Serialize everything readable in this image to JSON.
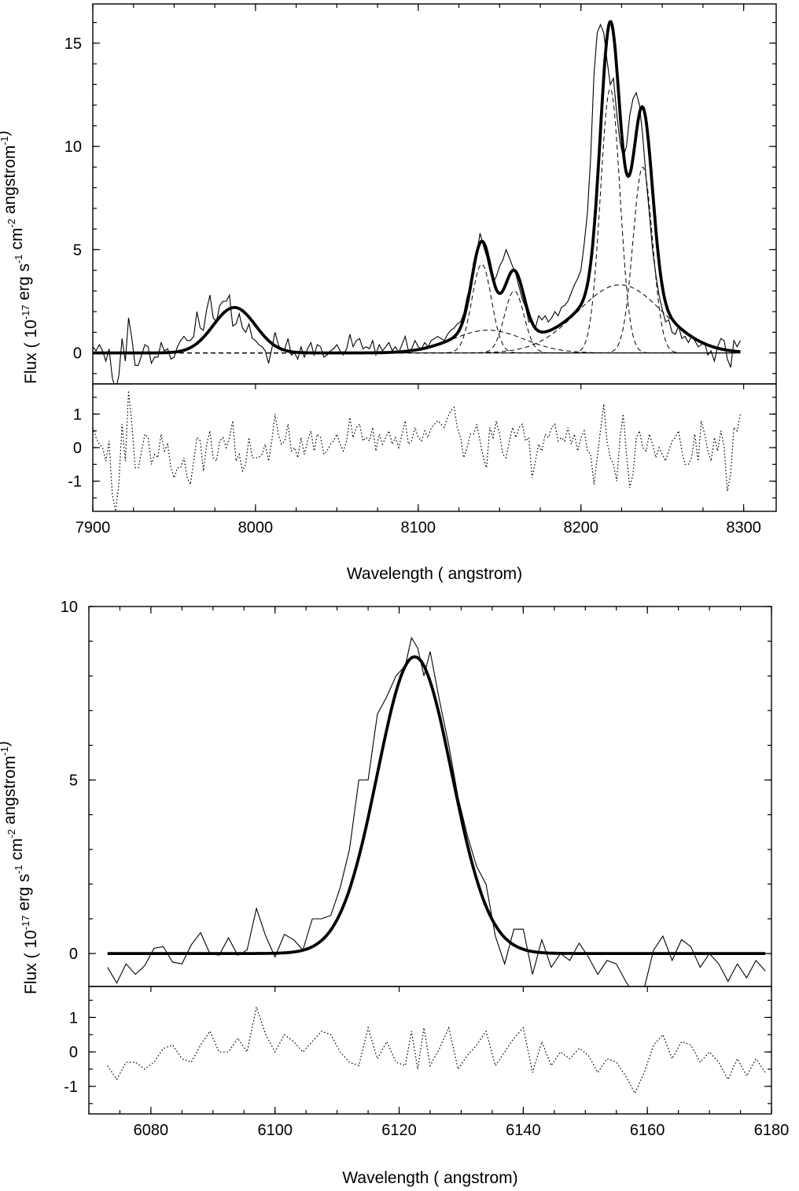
{
  "chart_data": [
    {
      "type": "line",
      "panel": "top",
      "xlabel": "Wavelength  ( angstrom)",
      "ylabel": "Flux  ( 10-17 erg s-1 cm-2 angstrom-1)",
      "ylabel_parts": {
        "open": "Flux  ( 10",
        "exp1": "-17",
        "mid1": " erg s",
        "exp2": "-1",
        "mid2": " cm",
        "exp3": "-2",
        "mid3": " angstrom",
        "exp4": "-1",
        "close": ")"
      },
      "xlim": [
        7900,
        8320
      ],
      "main_ylim": [
        -1.5,
        16.9
      ],
      "resid_ylim": [
        -1.9,
        1.9
      ],
      "xticks": [
        "7900",
        "8000",
        "8100",
        "8200",
        "8300"
      ],
      "main_yticks": [
        "0",
        "5",
        "10",
        "15"
      ],
      "resid_yticks": [
        "-1",
        "0",
        "1"
      ],
      "gaussian_components": [
        {
          "center": 7987,
          "sigma": 13,
          "amplitude": 2.2
        },
        {
          "center": 8139,
          "sigma": 6,
          "amplitude": 4.3
        },
        {
          "center": 8159,
          "sigma": 6,
          "amplitude": 3.0
        },
        {
          "center": 8143,
          "sigma": 22,
          "amplitude": 1.1
        },
        {
          "center": 8218,
          "sigma": 6,
          "amplitude": 12.8
        },
        {
          "center": 8238,
          "sigma": 6,
          "amplitude": 9.0
        },
        {
          "center": 8224,
          "sigma": 26,
          "amplitude": 3.3
        }
      ],
      "total_fit_peaks": [
        {
          "x": 7987,
          "y": 2.1
        },
        {
          "x": 8139,
          "y": 5.5
        },
        {
          "x": 8159,
          "y": 4.3
        },
        {
          "x": 8219,
          "y": 16.3
        },
        {
          "x": 8238,
          "y": 12.1
        }
      ],
      "observed": {
        "x_start": 7900,
        "step": 2,
        "y": [
          0.3,
          0.1,
          0.4,
          0.1,
          -0.4,
          0.2,
          -1.2,
          -1.8,
          -1.1,
          0.7,
          -0.4,
          1.7,
          0.7,
          -0.6,
          -0.6,
          -0.1,
          0.4,
          0.3,
          -0.5,
          -0.2,
          -0.2,
          0.5,
          0.1,
          0.2,
          -0.3,
          -0.2,
          0.3,
          0.6,
          0.8,
          0.6,
          0.6,
          0.8,
          2.0,
          1.2,
          1.1,
          2.1,
          2.8,
          1.7,
          1.5,
          2.3,
          2.5,
          2.5,
          2.8,
          1.3,
          1.4,
          1.9,
          1.2,
          1.0,
          1.4,
          0.7,
          0.6,
          0.4,
          0.3,
          0.1,
          -0.5,
          0.2,
          1.0,
          0.4,
          0.1,
          0.2,
          0.7,
          -0.1,
          0.0,
          -0.3,
          0.3,
          -0.2,
          0.2,
          0.5,
          -0.1,
          0.4,
          0.3,
          -0.2,
          -0.1,
          0.1,
          0.2,
          0.4,
          0.1,
          -0.1,
          0.2,
          0.9,
          0.3,
          0.6,
          0.7,
          0.2,
          0.3,
          0.2,
          0.6,
          -0.1,
          0.4,
          0.1,
          0.3,
          0.5,
          0.1,
          0.3,
          0.0,
          0.4,
          0.8,
          0.1,
          0.2,
          0.6,
          0.3,
          0.2,
          0.5,
          0.3,
          0.6,
          0.7,
          0.8,
          0.7,
          0.6,
          0.9,
          1.1,
          1.2,
          1.4,
          1.5,
          1.9,
          2.7,
          3.2,
          4.4,
          4.8,
          5.8,
          5.2,
          4.7,
          4.0,
          3.4,
          3.7,
          4.2,
          4.5,
          5.0,
          4.6,
          4.2,
          3.8,
          3.2,
          2.6,
          2.2,
          1.5,
          1.6,
          1.2,
          1.8,
          1.6,
          1.8,
          1.5,
          1.7,
          2.0,
          1.8,
          2.2,
          2.3,
          2.5,
          2.9,
          3.3,
          3.6,
          4.0,
          5.3,
          6.8,
          9.5,
          13.5,
          15.5,
          15.9,
          15.5,
          14.2,
          13.0,
          13.3,
          11.6,
          10.2,
          9.5,
          10.0,
          11.5,
          12.3,
          12.6,
          12.0,
          10.5,
          8.5,
          6.8,
          5.0,
          3.8,
          2.8,
          2.1,
          1.5,
          1.6,
          1.0,
          0.9,
          1.3,
          0.7,
          0.8,
          0.5,
          0.8,
          0.6,
          0.3,
          0.4,
          0.5,
          -0.1,
          0.1,
          -0.4,
          0.3,
          0.7,
          0.6,
          -0.3,
          -0.7,
          0.6,
          0.3,
          0.6
        ]
      },
      "residual": {
        "x_start": 7900,
        "step": 2,
        "y": [
          0.6,
          0.3,
          0.1,
          0.0,
          -0.4,
          0.2,
          -1.4,
          -1.9,
          -1.1,
          0.7,
          -0.4,
          1.7,
          0.7,
          -0.6,
          -0.6,
          -0.1,
          0.4,
          0.3,
          -0.5,
          -0.2,
          -0.3,
          0.4,
          -0.1,
          0.1,
          -0.6,
          -0.9,
          -0.6,
          -0.6,
          -0.3,
          -0.9,
          -1.1,
          -0.4,
          0.3,
          0.2,
          -0.7,
          0.1,
          0.5,
          -0.3,
          -0.4,
          0.2,
          0.3,
          0.0,
          0.3,
          0.8,
          -0.4,
          -0.2,
          -0.7,
          -0.5,
          0.3,
          -0.3,
          -0.3,
          -0.3,
          -0.2,
          0.1,
          -0.4,
          0.2,
          1.0,
          0.4,
          0.1,
          0.2,
          0.7,
          -0.1,
          0.0,
          -0.3,
          0.3,
          -0.2,
          0.2,
          0.5,
          -0.1,
          0.4,
          0.3,
          -0.2,
          -0.1,
          0.1,
          0.2,
          0.4,
          0.1,
          -0.1,
          0.2,
          0.9,
          0.3,
          0.6,
          0.7,
          0.2,
          0.3,
          0.2,
          0.6,
          -0.1,
          0.4,
          0.1,
          0.3,
          0.5,
          0.1,
          0.3,
          0.0,
          0.4,
          0.8,
          0.1,
          0.2,
          0.6,
          0.3,
          0.2,
          0.5,
          0.3,
          0.6,
          0.7,
          0.8,
          0.7,
          0.6,
          0.9,
          1.1,
          1.2,
          0.6,
          0.3,
          -0.3,
          0.0,
          0.4,
          0.4,
          0.7,
          0.2,
          -0.3,
          -0.6,
          0.6,
          0.3,
          0.8,
          0.4,
          -0.2,
          -0.3,
          0.2,
          0.6,
          0.3,
          0.6,
          0.7,
          0.2,
          0.3,
          -0.9,
          -0.4,
          0.1,
          -0.1,
          0.4,
          0.3,
          0.6,
          0.7,
          0.2,
          0.3,
          0.2,
          0.6,
          0.1,
          0.4,
          -0.1,
          0.3,
          0.5,
          -0.1,
          -0.2,
          -1.1,
          -0.3,
          0.5,
          1.3,
          0.2,
          -0.3,
          -0.5,
          -1.0,
          0.3,
          1.0,
          -0.2,
          -1.2,
          -0.8,
          0.3,
          0.5,
          0.0,
          -0.1,
          0.4,
          0.1,
          -0.3,
          0.0,
          -0.2,
          -0.4,
          -0.1,
          0.2,
          0.3,
          0.5,
          -0.1,
          -0.5,
          -0.5,
          -0.3,
          0.4,
          -0.4,
          0.8,
          0.4,
          -0.1,
          -0.4,
          0.3,
          -0.1,
          0.5,
          0.0,
          -1.3,
          -0.8,
          0.6,
          0.5,
          1.0
        ]
      }
    },
    {
      "type": "line",
      "panel": "bottom",
      "xlabel": "Wavelength  ( angstrom)",
      "ylabel": "Flux  ( 10-17 erg s-1 cm-2 angstrom-1)",
      "ylabel_parts": {
        "open": "Flux  ( 10",
        "exp1": "-17",
        "mid1": " erg s",
        "exp2": "-1",
        "mid2": " cm",
        "exp3": "-2",
        "mid3": " angstrom",
        "exp4": "-1",
        "close": ")"
      },
      "xlim": [
        6070,
        6180
      ],
      "main_ylim": [
        -0.95,
        10
      ],
      "resid_ylim": [
        -1.8,
        1.9
      ],
      "xticks": [
        "6080",
        "6100",
        "6120",
        "6140",
        "6160",
        "6180"
      ],
      "main_yticks": [
        "0",
        "5",
        "10"
      ],
      "resid_yticks": [
        "-1",
        "0",
        "1"
      ],
      "gaussian_components": [
        {
          "center": 6122.5,
          "sigma": 6.0,
          "amplitude": 8.55
        }
      ],
      "total_fit_peaks": [
        {
          "x": 6122.5,
          "y": 8.55
        }
      ],
      "observed": {
        "x": [
          6073,
          6074.5,
          6076,
          6077.5,
          6079,
          6080.5,
          6082,
          6083.5,
          6085,
          6086.5,
          6088,
          6089.5,
          6091,
          6092.5,
          6094,
          6095.5,
          6097,
          6098.5,
          6100,
          6101.5,
          6103,
          6104.5,
          6106,
          6107.5,
          6109,
          6110.5,
          6112,
          6113.5,
          6115,
          6116.5,
          6118,
          6119.5,
          6121,
          6122,
          6123,
          6124,
          6125,
          6126.5,
          6128,
          6129.5,
          6131,
          6132.5,
          6134,
          6135.5,
          6137,
          6138.5,
          6140,
          6141.5,
          6143,
          6144.5,
          6146,
          6147.5,
          6149,
          6150.5,
          6152,
          6153.5,
          6155,
          6156.5,
          6158,
          6159.5,
          6161,
          6162.5,
          6164,
          6165.5,
          6167,
          6168.5,
          6170,
          6171.5,
          6173,
          6174.5,
          6176,
          6177.5,
          6179
        ],
        "y": [
          -0.4,
          -0.85,
          -0.3,
          -0.6,
          -0.35,
          0.15,
          0.2,
          -0.25,
          -0.3,
          0.25,
          0.6,
          0.0,
          -0.05,
          0.45,
          -0.05,
          0.1,
          1.3,
          0.5,
          -0.1,
          0.55,
          0.4,
          0.1,
          1.0,
          1.0,
          1.1,
          1.9,
          3.0,
          5.0,
          5.0,
          6.9,
          7.4,
          8.0,
          8.3,
          9.1,
          8.8,
          8.0,
          8.7,
          7.3,
          6.0,
          4.5,
          3.4,
          2.5,
          2.0,
          0.5,
          -0.3,
          0.7,
          0.7,
          -0.6,
          0.4,
          -0.4,
          0.0,
          -0.2,
          0.3,
          -0.1,
          -0.6,
          -0.2,
          -0.3,
          -0.8,
          -1.2,
          -1.0,
          0.1,
          0.5,
          -0.2,
          0.4,
          0.2,
          -0.4,
          0.0,
          -0.3,
          -0.8,
          -0.3,
          -0.7,
          -0.2,
          -0.5
        ]
      },
      "residual": {
        "x": [
          6073,
          6074.5,
          6076,
          6077.5,
          6079,
          6080.5,
          6082,
          6083.5,
          6085,
          6086.5,
          6088,
          6089.5,
          6091,
          6092.5,
          6094,
          6095.5,
          6097,
          6098.5,
          6100,
          6101.5,
          6103,
          6104.5,
          6106,
          6107.5,
          6109,
          6110.5,
          6112,
          6113.5,
          6115,
          6116.5,
          6118,
          6119.5,
          6121,
          6122,
          6123,
          6124,
          6125,
          6126.5,
          6128,
          6129.5,
          6131,
          6132.5,
          6134,
          6135.5,
          6137,
          6138.5,
          6140,
          6141.5,
          6143,
          6144.5,
          6146,
          6147.5,
          6149,
          6150.5,
          6152,
          6153.5,
          6155,
          6156.5,
          6158,
          6159.5,
          6161,
          6162.5,
          6164,
          6165.5,
          6167,
          6168.5,
          6170,
          6171.5,
          6173,
          6174.5,
          6176,
          6177.5,
          6179
        ],
        "y": [
          -0.4,
          -0.8,
          -0.3,
          -0.3,
          -0.5,
          -0.3,
          0.1,
          0.2,
          -0.2,
          -0.3,
          0.2,
          0.6,
          0.0,
          0.0,
          0.4,
          0.0,
          1.3,
          0.5,
          0.0,
          0.5,
          0.3,
          0.0,
          0.3,
          0.6,
          0.5,
          0.0,
          -0.3,
          -0.4,
          0.7,
          -0.2,
          0.3,
          -0.3,
          -0.4,
          0.6,
          -0.5,
          0.7,
          -0.4,
          0.1,
          0.7,
          -0.5,
          -0.1,
          0.2,
          0.6,
          -0.4,
          0.0,
          0.4,
          0.7,
          -0.6,
          0.3,
          -0.4,
          0.0,
          -0.2,
          0.1,
          -0.1,
          -0.6,
          -0.2,
          -0.3,
          -0.7,
          -1.2,
          -0.6,
          0.2,
          0.5,
          -0.2,
          0.3,
          0.2,
          -0.3,
          0.0,
          -0.3,
          -0.8,
          -0.2,
          -0.7,
          -0.2,
          -0.6
        ]
      }
    }
  ]
}
